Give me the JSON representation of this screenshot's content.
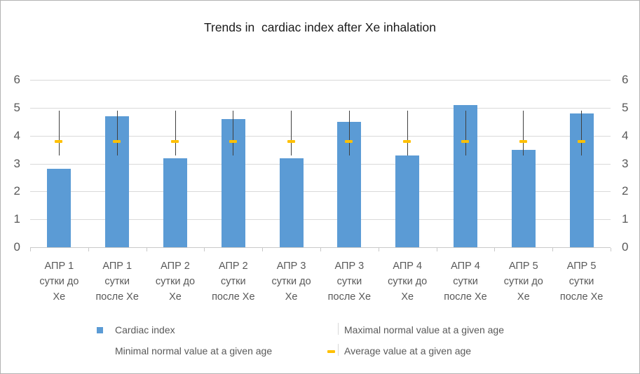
{
  "title": "Trends in  cardiac index after Xe inhalation",
  "colors": {
    "bar": "#5b9bd5",
    "average_marker": "#ffc000",
    "error_line": "#404040",
    "legend_faint_line": "#d9d9d9",
    "gridline": "#d9d9d9",
    "axis_text": "#595959"
  },
  "chart_data": {
    "type": "bar",
    "title": "Trends in  cardiac index after Xe inhalation",
    "xlabel": "",
    "ylabel": "",
    "ylim": [
      0,
      6
    ],
    "y_ticks": [
      0,
      1,
      2,
      3,
      4,
      5,
      6
    ],
    "y_axis_sides": [
      "left",
      "right"
    ],
    "grid": true,
    "legend_position": "bottom",
    "categories": [
      "АПР 1 сутки до Хе",
      "АПР 1 сутки после Хе",
      "АПР 2 сутки до Хе",
      "АПР 2 сутки после Хе",
      "АПР 3 сутки до Хе",
      "АПР 3 сутки после Хе",
      "АПР 4 сутки до Хе",
      "АПР 4 сутки после Хе",
      "АПР 5 сутки до Хе",
      "АПР 5 сутки после Хе"
    ],
    "category_lines": [
      [
        "АПР 1",
        "сутки до",
        "Хе"
      ],
      [
        "АПР 1",
        "сутки",
        "после Хе"
      ],
      [
        "АПР 2",
        "сутки до",
        "Хе"
      ],
      [
        "АПР 2",
        "сутки",
        "после Хе"
      ],
      [
        "АПР 3",
        "сутки до",
        "Хе"
      ],
      [
        "АПР 3",
        "сутки",
        "после Хе"
      ],
      [
        "АПР 4",
        "сутки до",
        "Хе"
      ],
      [
        "АПР 4",
        "сутки",
        "после Хе"
      ],
      [
        "АПР 5",
        "сутки до",
        "Хе"
      ],
      [
        "АПР 5",
        "сутки",
        "после Хе"
      ]
    ],
    "series": [
      {
        "name": "Cardiac index",
        "type": "bar",
        "values": [
          2.8,
          4.7,
          3.2,
          4.6,
          3.2,
          4.5,
          3.3,
          5.1,
          3.5,
          4.8
        ]
      },
      {
        "name": "Maximal normal value at a given age",
        "type": "line-marker",
        "values": [
          4.9,
          4.9,
          4.9,
          4.9,
          4.9,
          4.9,
          4.9,
          4.9,
          4.9,
          4.9
        ]
      },
      {
        "name": "Minimal normal value at a given age",
        "type": "line-marker",
        "values": [
          3.3,
          3.3,
          3.3,
          3.3,
          3.3,
          3.3,
          3.3,
          3.3,
          3.3,
          3.3
        ]
      },
      {
        "name": "Average value at a given age",
        "type": "dash-marker",
        "values": [
          3.8,
          3.8,
          3.8,
          3.8,
          3.8,
          3.8,
          3.8,
          3.8,
          3.8,
          3.8
        ]
      }
    ]
  },
  "legend": {
    "items": [
      {
        "label": "Cardiac index",
        "marker": "blue-square"
      },
      {
        "label": "Maximal normal value at a given age",
        "marker": "vertical-line"
      },
      {
        "label": "Minimal normal value at a given age",
        "marker": "none"
      },
      {
        "label": "Average value at a given age",
        "marker": "yellow-dash"
      }
    ]
  }
}
